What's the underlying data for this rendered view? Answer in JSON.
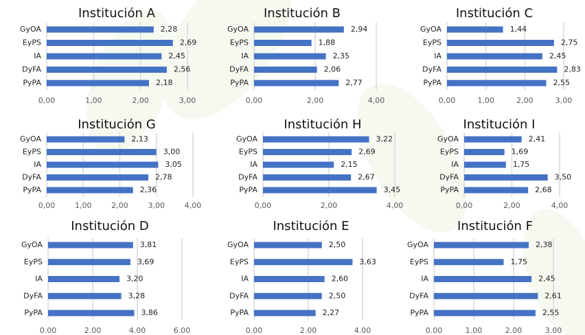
{
  "chart_data": [
    {
      "type": "bar",
      "orientation": "horizontal",
      "title": "Institución A",
      "categories": [
        "GyOA",
        "EyPS",
        "IA",
        "DyFA",
        "PyPA"
      ],
      "values": [
        2.28,
        2.69,
        2.45,
        2.56,
        2.18
      ],
      "value_labels": [
        "2,28",
        "2,69",
        "2,45",
        "2,56",
        "2,18"
      ],
      "color": "#4472c4",
      "xlim": [
        0,
        3
      ],
      "xticks": [
        {
          "value": 0,
          "label": "0,00"
        },
        {
          "value": 1,
          "label": "1,00"
        },
        {
          "value": 2,
          "label": "2,00"
        },
        {
          "value": 3,
          "label": "3,00"
        }
      ],
      "grid": true
    },
    {
      "type": "bar",
      "orientation": "horizontal",
      "title": "Institución B",
      "categories": [
        "GyOA",
        "EyPS",
        "IA",
        "DyFA",
        "PyPA"
      ],
      "values": [
        2.94,
        1.88,
        2.35,
        2.06,
        2.77
      ],
      "value_labels": [
        "2,94",
        "1,88",
        "2,35",
        "2,06",
        "2,77"
      ],
      "color": "#4472c4",
      "xlim": [
        0,
        4
      ],
      "xticks": [
        {
          "value": 0,
          "label": "0,00"
        },
        {
          "value": 2,
          "label": "2,00"
        },
        {
          "value": 4,
          "label": "4,00"
        }
      ],
      "grid": true
    },
    {
      "type": "bar",
      "orientation": "horizontal",
      "title": "Institución C",
      "categories": [
        "GyOA",
        "EyPS",
        "IA",
        "DyFA",
        "PyPA"
      ],
      "values": [
        1.44,
        2.75,
        2.45,
        2.83,
        2.55
      ],
      "value_labels": [
        "1,44",
        "2,75",
        "2,45",
        "2,83",
        "2,55"
      ],
      "color": "#4472c4",
      "xlim": [
        0,
        3
      ],
      "xticks": [
        {
          "value": 0,
          "label": "0,00"
        },
        {
          "value": 1,
          "label": "1,00"
        },
        {
          "value": 2,
          "label": "2,00"
        },
        {
          "value": 3,
          "label": "3,00"
        }
      ],
      "grid": true
    },
    {
      "type": "bar",
      "orientation": "horizontal",
      "title": "Institución G",
      "categories": [
        "GyOA",
        "EyPS",
        "IA",
        "DyFA",
        "PyPA"
      ],
      "values": [
        2.13,
        3.0,
        3.05,
        2.78,
        2.36
      ],
      "value_labels": [
        "2,13",
        "3,00",
        "3,05",
        "2,78",
        "2,36"
      ],
      "color": "#4472c4",
      "xlim": [
        0,
        4
      ],
      "xticks": [
        {
          "value": 0,
          "label": "0,00"
        },
        {
          "value": 1,
          "label": "1,00"
        },
        {
          "value": 2,
          "label": "2,00"
        },
        {
          "value": 3,
          "label": "3,00"
        },
        {
          "value": 4,
          "label": "4,00"
        }
      ],
      "grid": true
    },
    {
      "type": "bar",
      "orientation": "horizontal",
      "title": "Institución H",
      "categories": [
        "GyOA",
        "EyPS",
        "IA",
        "DyFA",
        "PyPA"
      ],
      "values": [
        3.22,
        2.69,
        2.15,
        2.67,
        3.45
      ],
      "value_labels": [
        "3,22",
        "2,69",
        "2,15",
        "2,67",
        "3,45"
      ],
      "color": "#4472c4",
      "xlim": [
        0,
        4
      ],
      "xticks": [
        {
          "value": 0,
          "label": "0,00"
        },
        {
          "value": 2,
          "label": "2,00"
        },
        {
          "value": 4,
          "label": "4,00"
        }
      ],
      "grid": true
    },
    {
      "type": "bar",
      "orientation": "horizontal",
      "title": "Institución I",
      "categories": [
        "GyOA",
        "EyPS",
        "IA",
        "DyFA",
        "PyPA"
      ],
      "values": [
        2.41,
        1.69,
        1.75,
        3.5,
        2.68
      ],
      "value_labels": [
        "2,41",
        "1,69",
        "1,75",
        "3,50",
        "2,68"
      ],
      "color": "#4472c4",
      "xlim": [
        0,
        4
      ],
      "xticks": [
        {
          "value": 0,
          "label": "0,00"
        },
        {
          "value": 2,
          "label": "2,00"
        },
        {
          "value": 4,
          "label": "4,00"
        }
      ],
      "grid": true
    },
    {
      "type": "bar",
      "orientation": "horizontal",
      "title": "Institución D",
      "categories": [
        "GyOA",
        "EyPS",
        "IA",
        "DyFA",
        "PyPA"
      ],
      "values": [
        3.81,
        3.69,
        3.2,
        3.28,
        3.86
      ],
      "value_labels": [
        "3,81",
        "3,69",
        "3,20",
        "3,28",
        "3,86"
      ],
      "color": "#4472c4",
      "xlim": [
        0,
        6
      ],
      "xticks": [
        {
          "value": 0,
          "label": "0.00"
        },
        {
          "value": 2,
          "label": "2.00"
        },
        {
          "value": 4,
          "label": "4.00"
        },
        {
          "value": 6,
          "label": "6.00"
        }
      ],
      "grid": true
    },
    {
      "type": "bar",
      "orientation": "horizontal",
      "title": "Institución E",
      "categories": [
        "GyOA",
        "EyPS",
        "IA",
        "DyFA",
        "PyPA"
      ],
      "values": [
        2.5,
        3.63,
        2.6,
        2.5,
        2.27
      ],
      "value_labels": [
        "2,50",
        "3,63",
        "2,60",
        "2,50",
        "2,27"
      ],
      "color": "#4472c4",
      "xlim": [
        0,
        4
      ],
      "xticks": [
        {
          "value": 0,
          "label": "0.00"
        },
        {
          "value": 2,
          "label": "2.00"
        },
        {
          "value": 4,
          "label": "4.00"
        }
      ],
      "grid": true
    },
    {
      "type": "bar",
      "orientation": "horizontal",
      "title": "Institución F",
      "categories": [
        "GyOA",
        "EyPS",
        "IA",
        "DyFA",
        "PyPA"
      ],
      "values": [
        2.38,
        1.75,
        2.45,
        2.61,
        2.55
      ],
      "value_labels": [
        "2,38",
        "1,75",
        "2,45",
        "2,61",
        "2,55"
      ],
      "color": "#4472c4",
      "xlim": [
        0,
        3
      ],
      "xticks": [
        {
          "value": 0,
          "label": "0.00"
        },
        {
          "value": 1,
          "label": "1.00"
        },
        {
          "value": 2,
          "label": "2.00"
        },
        {
          "value": 3,
          "label": "3.00"
        }
      ],
      "grid": true
    }
  ]
}
